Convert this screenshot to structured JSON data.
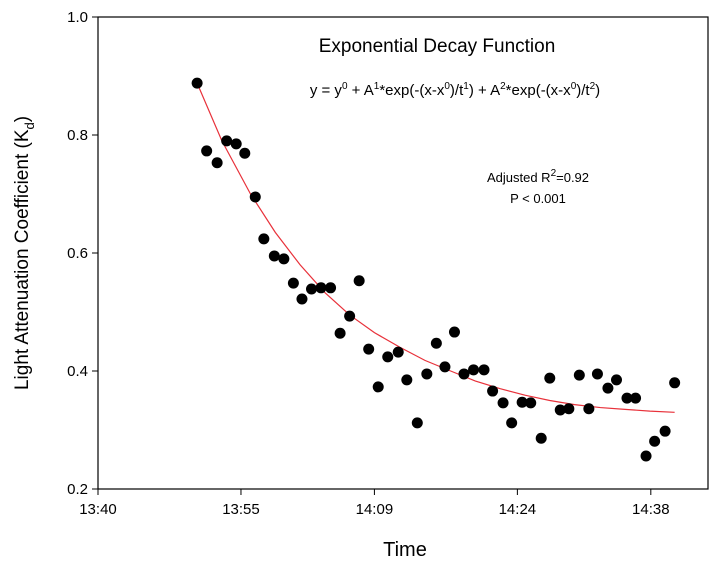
{
  "chart_data": {
    "type": "scatter",
    "title": "Exponential Decay Function",
    "equation_parts": [
      "y = y",
      "0",
      " + A",
      "1",
      "*exp(-(x-x",
      "0",
      ")/t",
      "1",
      ") + A",
      "2",
      "*exp(-(x-x",
      "0",
      ")/t",
      "2",
      ")"
    ],
    "r2_parts": [
      "Adjusted R",
      "2",
      "=0.92"
    ],
    "p_text": "P < 0.001",
    "xlabel": "Time",
    "ylabel_parts": [
      "Light Attenuation Coefficient (K",
      "d",
      ")"
    ],
    "x": [
      830.4,
      831.4,
      832.5,
      833.5,
      834.5,
      835.4,
      836.5,
      837.4,
      838.5,
      839.5,
      840.5,
      841.4,
      842.4,
      843.4,
      844.4,
      845.4,
      846.4,
      847.4,
      848.4,
      849.4,
      850.4,
      851.5,
      852.4,
      853.5,
      854.5,
      855.5,
      856.4,
      857.4,
      858.4,
      859.4,
      860.5,
      861.4,
      862.5,
      863.4,
      864.5,
      865.4,
      866.5,
      867.4,
      868.5,
      869.4,
      870.5,
      871.5,
      872.4,
      873.5,
      874.4,
      875.5,
      876.4,
      877.5,
      878.4,
      879.5,
      880.5
    ],
    "values": [
      0.888,
      0.773,
      0.753,
      0.79,
      0.785,
      0.769,
      0.695,
      0.624,
      0.595,
      0.59,
      0.549,
      0.522,
      0.539,
      0.541,
      0.541,
      0.464,
      0.493,
      0.553,
      0.437,
      0.373,
      0.424,
      0.432,
      0.385,
      0.312,
      0.395,
      0.447,
      0.407,
      0.466,
      0.395,
      0.402,
      0.402,
      0.366,
      0.346,
      0.312,
      0.347,
      0.346,
      0.286,
      0.388,
      0.334,
      0.336,
      0.393,
      0.336,
      0.395,
      0.371,
      0.385,
      0.354,
      0.354,
      0.256,
      0.281,
      0.298,
      0.38
    ],
    "color": "#000000",
    "fit": {
      "x": [
        830.4,
        833,
        836,
        838.6,
        841.2,
        843.8,
        846.4,
        849,
        851.7,
        854.3,
        857,
        859.6,
        862.2,
        864.8,
        867.4,
        870,
        872.7,
        875.3,
        877.9,
        880.5
      ],
      "values": [
        0.888,
        0.79,
        0.7,
        0.635,
        0.58,
        0.533,
        0.495,
        0.465,
        0.44,
        0.418,
        0.4,
        0.383,
        0.37,
        0.359,
        0.35,
        0.343,
        0.338,
        0.335,
        0.332,
        0.33
      ],
      "color": "#e8313a"
    },
    "xlim": [
      820,
      884
    ],
    "xticks": [
      {
        "value": 820,
        "label": "13:40"
      },
      {
        "value": 835,
        "label": "13:55"
      },
      {
        "value": 849,
        "label": "14:09"
      },
      {
        "value": 864,
        "label": "14:24"
      },
      {
        "value": 878,
        "label": "14:38"
      }
    ],
    "ylim": [
      0.2,
      1.0
    ],
    "yticks": [
      0.2,
      0.4,
      0.6,
      0.8,
      {
        "value": 1.0,
        "label": "1.0"
      }
    ],
    "grid": false
  }
}
